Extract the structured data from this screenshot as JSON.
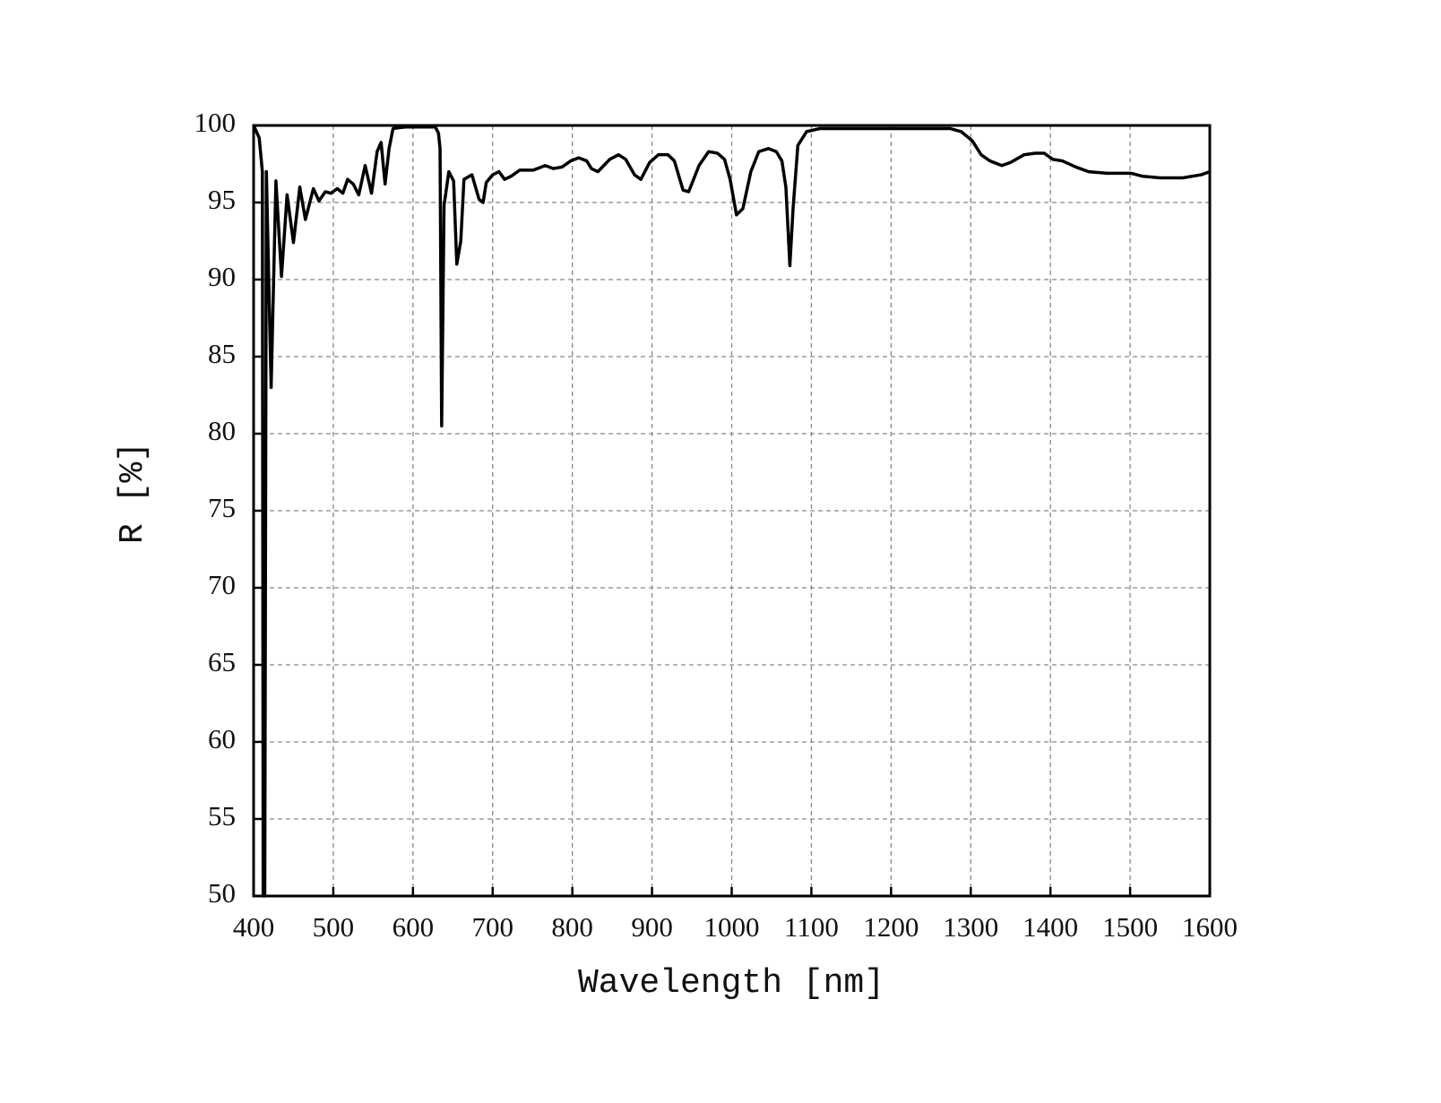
{
  "chart_data": {
    "type": "line",
    "xlabel": "Wavelength [nm]",
    "ylabel": "R [%]",
    "xlim": [
      400,
      1600
    ],
    "ylim": [
      50,
      100
    ],
    "xticks": [
      400,
      500,
      600,
      700,
      800,
      900,
      1000,
      1100,
      1200,
      1300,
      1400,
      1500,
      1600
    ],
    "yticks": [
      50,
      55,
      60,
      65,
      70,
      75,
      80,
      85,
      90,
      95,
      100
    ],
    "grid": true,
    "x": [
      400,
      407,
      411,
      412,
      414,
      416,
      422,
      428,
      435,
      442,
      450,
      458,
      465,
      475,
      482,
      490,
      497,
      505,
      512,
      518,
      525,
      532,
      540,
      548,
      555,
      560,
      565,
      570,
      575,
      590,
      620,
      628,
      632,
      634,
      636,
      639,
      645,
      651,
      655,
      660,
      664,
      674,
      683,
      688,
      692,
      700,
      708,
      715,
      723,
      734,
      751,
      766,
      776,
      787,
      798,
      808,
      818,
      824,
      832,
      847,
      858,
      867,
      878,
      886,
      897,
      908,
      920,
      928,
      939,
      946,
      959,
      971,
      982,
      991,
      998,
      1006,
      1014,
      1024,
      1034,
      1046,
      1056,
      1063,
      1068,
      1073,
      1077,
      1083,
      1094,
      1111,
      1139,
      1274,
      1288,
      1302,
      1313,
      1324,
      1339,
      1350,
      1367,
      1381,
      1392,
      1403,
      1415,
      1432,
      1448,
      1471,
      1501,
      1516,
      1538,
      1566,
      1589,
      1600
    ],
    "series": [
      {
        "color": "#000000",
        "values": [
          100,
          99.2,
          97,
          50,
          50,
          97,
          83,
          96.4,
          90.2,
          95.5,
          92.4,
          96,
          93.9,
          95.9,
          95.1,
          95.7,
          95.6,
          95.9,
          95.6,
          96.5,
          96.2,
          95.5,
          97.4,
          95.6,
          98.3,
          98.9,
          96.2,
          98.5,
          99.8,
          99.9,
          99.9,
          99.9,
          99.5,
          98.5,
          80.5,
          94.8,
          97,
          96.4,
          91,
          92.5,
          96.5,
          96.8,
          95.2,
          95,
          96.3,
          96.8,
          97,
          96.5,
          96.7,
          97.1,
          97.1,
          97.4,
          97.2,
          97.3,
          97.7,
          97.9,
          97.7,
          97.2,
          97,
          97.8,
          98.1,
          97.8,
          96.8,
          96.5,
          97.6,
          98.1,
          98.1,
          97.7,
          95.8,
          95.7,
          97.4,
          98.3,
          98.2,
          97.8,
          96.5,
          94.2,
          94.6,
          97,
          98.3,
          98.5,
          98.3,
          97.7,
          96,
          90.9,
          94.6,
          98.7,
          99.6,
          99.8,
          99.8,
          99.8,
          99.6,
          99,
          98.1,
          97.7,
          97.4,
          97.6,
          98.1,
          98.2,
          98.2,
          97.8,
          97.7,
          97.3,
          97,
          96.9,
          96.9,
          96.7,
          96.6,
          96.6,
          96.8,
          97
        ]
      }
    ]
  }
}
